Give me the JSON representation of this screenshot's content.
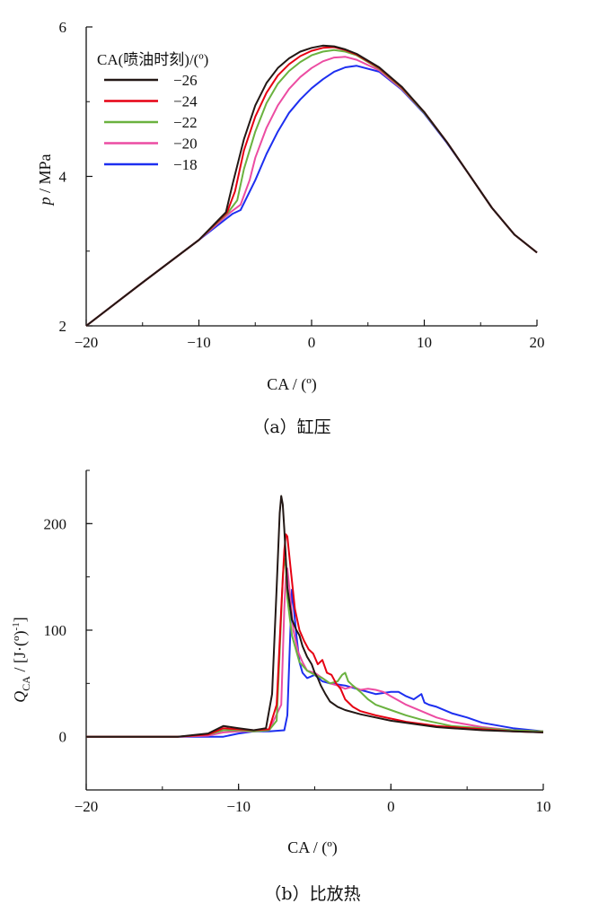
{
  "colors": {
    "-26": "#231815",
    "-24": "#e60012",
    "-22": "#6ab23f",
    "-20": "#ec4ca2",
    "-18": "#1d2ff0"
  },
  "chart_data": [
    {
      "type": "line",
      "caption": "（a）缸压",
      "xlabel": "CA  / (º)",
      "ylabel_italic": "p",
      "ylabel_rest": " / MPa",
      "xlim": [
        -20,
        20
      ],
      "ylim": [
        2,
        6
      ],
      "xticks": [
        -20,
        -10,
        0,
        10,
        20
      ],
      "xtick_labels": [
        "−20",
        "−10",
        "0",
        "10",
        "20"
      ],
      "yticks": [
        2,
        4,
        6
      ],
      "ytick_labels": [
        "2",
        "4",
        "6"
      ],
      "legend_title": "CA(喷油时刻)/(º)",
      "legend_position": "top-left",
      "series": [
        {
          "name": "−26",
          "key": "-26",
          "color": "#231815",
          "x": [
            -20,
            -15,
            -10,
            -7.6,
            -7,
            -6,
            -5,
            -4,
            -3,
            -2,
            -1,
            0,
            1,
            2,
            3,
            4,
            6,
            8,
            10,
            12,
            14,
            16,
            18,
            20
          ],
          "y": [
            2,
            2.58,
            3.15,
            3.52,
            3.9,
            4.5,
            4.95,
            5.25,
            5.45,
            5.58,
            5.67,
            5.72,
            5.75,
            5.74,
            5.7,
            5.64,
            5.46,
            5.2,
            4.86,
            4.46,
            4.02,
            3.58,
            3.22,
            2.98
          ]
        },
        {
          "name": "−24",
          "key": "-24",
          "color": "#e60012",
          "x": [
            -20,
            -15,
            -10,
            -7.5,
            -6.8,
            -6,
            -5,
            -4,
            -3,
            -2,
            -1,
            0,
            1,
            2,
            3,
            4,
            6,
            8,
            10,
            12,
            14,
            16,
            18,
            20
          ],
          "y": [
            2,
            2.58,
            3.15,
            3.52,
            3.8,
            4.35,
            4.8,
            5.12,
            5.35,
            5.5,
            5.61,
            5.68,
            5.72,
            5.73,
            5.69,
            5.63,
            5.45,
            5.19,
            4.86,
            4.46,
            4.02,
            3.58,
            3.22,
            2.98
          ]
        },
        {
          "name": "−22",
          "key": "-22",
          "color": "#6ab23f",
          "x": [
            -20,
            -15,
            -10,
            -7.4,
            -6.6,
            -6,
            -5,
            -4,
            -3,
            -2,
            -1,
            0,
            1,
            2,
            3,
            4,
            6,
            8,
            10,
            12,
            14,
            16,
            18,
            20
          ],
          "y": [
            2,
            2.58,
            3.15,
            3.52,
            3.68,
            4.1,
            4.6,
            4.98,
            5.24,
            5.41,
            5.53,
            5.62,
            5.67,
            5.69,
            5.67,
            5.62,
            5.44,
            5.18,
            4.85,
            4.46,
            4.02,
            3.58,
            3.22,
            2.98
          ]
        },
        {
          "name": "−20",
          "key": "-20",
          "color": "#ec4ca2",
          "x": [
            -20,
            -15,
            -10,
            -7.2,
            -6.3,
            -5.5,
            -5,
            -4,
            -3,
            -2,
            -1,
            0,
            1,
            2,
            3,
            4,
            6,
            8,
            10,
            12,
            14,
            16,
            18,
            20
          ],
          "y": [
            2,
            2.58,
            3.15,
            3.52,
            3.62,
            3.95,
            4.25,
            4.65,
            4.95,
            5.17,
            5.33,
            5.45,
            5.54,
            5.59,
            5.6,
            5.56,
            5.42,
            5.17,
            4.85,
            4.46,
            4.02,
            3.58,
            3.22,
            2.98
          ]
        },
        {
          "name": "−18",
          "key": "-18",
          "color": "#1d2ff0",
          "x": [
            -20,
            -15,
            -10,
            -7,
            -6.3,
            -5,
            -4,
            -3,
            -2,
            -1,
            0,
            1,
            2,
            3,
            4,
            6,
            8,
            10,
            12,
            14,
            16,
            18,
            20
          ],
          "y": [
            2,
            2.58,
            3.15,
            3.5,
            3.55,
            3.95,
            4.3,
            4.6,
            4.85,
            5.03,
            5.18,
            5.3,
            5.4,
            5.46,
            5.48,
            5.4,
            5.16,
            4.84,
            4.45,
            4.02,
            3.58,
            3.22,
            2.98
          ]
        }
      ]
    },
    {
      "type": "line",
      "caption": "（b）比放热",
      "xlabel": "CA / (º)",
      "ylabel_italic": "Q",
      "ylabel_sub": "CA",
      "ylabel_rest": " / [J·(º)",
      "ylabel_sup": "-1",
      "ylabel_end": "]",
      "xlim": [
        -20,
        10
      ],
      "ylim": [
        -50,
        250
      ],
      "xticks": [
        -20,
        -10,
        0,
        10
      ],
      "xtick_labels": [
        "−20",
        "−10",
        "0",
        "10"
      ],
      "yticks": [
        0,
        100,
        200
      ],
      "ytick_labels": [
        "0",
        "100",
        "200"
      ],
      "series": [
        {
          "name": "−26",
          "key": "-26",
          "color": "#231815",
          "x": [
            -20,
            -14,
            -12,
            -11,
            -10,
            -9,
            -8.2,
            -7.8,
            -7.5,
            -7.3,
            -7.2,
            -7.1,
            -7,
            -6.8,
            -6.5,
            -6.2,
            -6,
            -5.8,
            -5.5,
            -5.2,
            -5,
            -4.8,
            -4.6,
            -4.3,
            -4,
            -3.5,
            -3,
            -2,
            -1,
            0,
            1,
            2,
            3,
            4,
            6,
            8,
            10
          ],
          "y": [
            0,
            0,
            3,
            10,
            8,
            6,
            8,
            40,
            140,
            210,
            226,
            218,
            195,
            140,
            110,
            100,
            95,
            85,
            75,
            68,
            60,
            55,
            48,
            40,
            33,
            28,
            25,
            21,
            18,
            15,
            13,
            11,
            9,
            8,
            6,
            5,
            4
          ]
        },
        {
          "name": "−24",
          "key": "-24",
          "color": "#e60012",
          "x": [
            -20,
            -14,
            -12,
            -11,
            -10,
            -9,
            -8,
            -7.5,
            -7.2,
            -7,
            -6.9,
            -6.8,
            -6.6,
            -6.3,
            -6,
            -5.7,
            -5.4,
            -5.1,
            -4.8,
            -4.5,
            -4.2,
            -3.9,
            -3.6,
            -3.3,
            -3,
            -2.5,
            -2,
            -1,
            0,
            1,
            2,
            3,
            4,
            6,
            8,
            10
          ],
          "y": [
            0,
            0,
            2,
            8,
            7,
            6,
            7,
            30,
            120,
            175,
            190,
            188,
            160,
            120,
            100,
            90,
            82,
            78,
            68,
            72,
            60,
            58,
            50,
            45,
            35,
            28,
            24,
            20,
            17,
            14,
            12,
            10,
            9,
            7,
            5,
            4
          ]
        },
        {
          "name": "−22",
          "key": "-22",
          "color": "#6ab23f",
          "x": [
            -20,
            -14,
            -12,
            -11,
            -10,
            -9,
            -8,
            -7.5,
            -7.3,
            -7.1,
            -7,
            -6.9,
            -6.8,
            -6.5,
            -6.2,
            -6,
            -5.5,
            -5,
            -4.5,
            -4,
            -3.5,
            -3.2,
            -3,
            -2.8,
            -2.5,
            -2,
            -1.5,
            -1,
            0,
            1,
            2,
            3,
            4,
            6,
            8,
            10
          ],
          "y": [
            0,
            0,
            2,
            6,
            6,
            5,
            6,
            15,
            80,
            150,
            167,
            160,
            130,
            95,
            80,
            70,
            62,
            58,
            55,
            50,
            52,
            58,
            60,
            52,
            48,
            42,
            35,
            30,
            25,
            20,
            16,
            13,
            10,
            8,
            6,
            5
          ]
        },
        {
          "name": "−20",
          "key": "-20",
          "color": "#ec4ca2",
          "x": [
            -20,
            -14,
            -12,
            -11,
            -10,
            -9,
            -8,
            -7.2,
            -7,
            -6.9,
            -6.8,
            -6.6,
            -6.4,
            -6.1,
            -5.8,
            -5.5,
            -5,
            -4.5,
            -4,
            -3.5,
            -3,
            -2.5,
            -2,
            -1.5,
            -1,
            -0.5,
            0,
            1,
            2,
            3,
            4,
            6,
            8,
            10
          ],
          "y": [
            0,
            0,
            1,
            4,
            5,
            5,
            6,
            30,
            120,
            150,
            158,
            130,
            100,
            80,
            70,
            62,
            60,
            55,
            50,
            48,
            45,
            47,
            44,
            45,
            44,
            42,
            38,
            30,
            24,
            18,
            14,
            9,
            6,
            5
          ]
        },
        {
          "name": "−18",
          "key": "-18",
          "color": "#1d2ff0",
          "x": [
            -20,
            -13,
            -11,
            -10,
            -9,
            -8,
            -7,
            -6.8,
            -6.6,
            -6.5,
            -6.4,
            -6.2,
            -6,
            -5.8,
            -5.5,
            -5,
            -4.5,
            -4,
            -3,
            -2,
            -1,
            0,
            0.5,
            1,
            1.5,
            2,
            2.2,
            2.5,
            3,
            4,
            5,
            6,
            8,
            10
          ],
          "y": [
            0,
            0,
            0,
            3,
            5,
            5,
            6,
            20,
            100,
            138,
            125,
            95,
            70,
            60,
            55,
            58,
            52,
            50,
            48,
            44,
            40,
            42,
            42,
            38,
            35,
            40,
            32,
            30,
            28,
            22,
            18,
            13,
            8,
            5
          ]
        }
      ]
    }
  ]
}
